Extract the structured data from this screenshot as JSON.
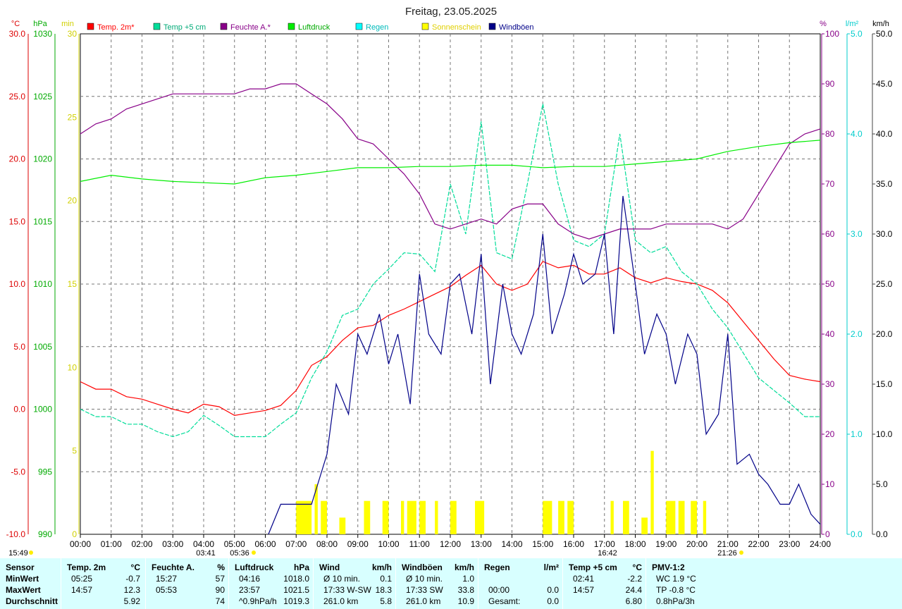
{
  "chart_data": {
    "type": "line",
    "title": "Freitag, 23.05.2025",
    "x_ticks": [
      "00:00",
      "01:00",
      "02:00",
      "03:00",
      "04:00",
      "05:00",
      "06:00",
      "07:00",
      "08:00",
      "09:00",
      "10:00",
      "11:00",
      "12:00",
      "13:00",
      "14:00",
      "15:00",
      "16:00",
      "17:00",
      "18:00",
      "19:00",
      "20:00",
      "21:00",
      "22:00",
      "23:00",
      "24:00"
    ],
    "xlim_hours": [
      0,
      24
    ],
    "grid": true,
    "axes": {
      "temp": {
        "unit": "°C",
        "range": [
          -10,
          30
        ],
        "ticks": [
          "30.0",
          "25.0",
          "20.0",
          "15.0",
          "10.0",
          "5.0",
          "0.0",
          "-5.0",
          "-10.0"
        ],
        "color": "#ff0000"
      },
      "pressure": {
        "unit": "hPa",
        "range": [
          990,
          1030
        ],
        "ticks": [
          "1030",
          "1025",
          "1020",
          "1015",
          "1010",
          "1005",
          "1000",
          "995",
          "990"
        ],
        "color": "#00bb00"
      },
      "sunshine": {
        "unit": "min",
        "range": [
          0,
          30
        ],
        "ticks": [
          "30",
          "25",
          "20",
          "15",
          "10",
          "5",
          "0"
        ],
        "color": "#dddd00"
      },
      "humidity": {
        "unit": "%",
        "range": [
          0,
          100
        ],
        "ticks": [
          "100",
          "90",
          "80",
          "70",
          "60",
          "50",
          "40",
          "30",
          "20",
          "10",
          "0"
        ],
        "color": "#880088"
      },
      "rain": {
        "unit": "l/m²",
        "range": [
          0,
          5
        ],
        "ticks": [
          "5.0",
          "4.0",
          "3.0",
          "2.0",
          "1.0",
          "0.0"
        ],
        "color": "#00dddd"
      },
      "wind": {
        "unit": "km/h",
        "range": [
          0,
          50
        ],
        "ticks": [
          "50.0",
          "45.0",
          "40.0",
          "35.0",
          "30.0",
          "25.0",
          "20.0",
          "15.0",
          "10.0",
          "5.0",
          "0.0"
        ],
        "color": "#000000"
      }
    },
    "legend": [
      {
        "name": "Temp. 2m*",
        "color": "#ff0000"
      },
      {
        "name": "Temp +5 cm",
        "color": "#00dd99"
      },
      {
        "name": "Feuchte A.*",
        "color": "#880088"
      },
      {
        "name": "Luftdruck",
        "color": "#00ee00"
      },
      {
        "name": "Regen",
        "color": "#00ffff"
      },
      {
        "name": "Sonnenschein",
        "color": "#ffff00"
      },
      {
        "name": "Windböen",
        "color": "#000088"
      }
    ],
    "series": [
      {
        "name": "Temp. 2m*",
        "axis": "temp",
        "color": "#ff0000",
        "hours": [
          0,
          0.5,
          1,
          1.5,
          2,
          2.5,
          3,
          3.5,
          4,
          4.5,
          5,
          5.5,
          6,
          6.5,
          7,
          7.5,
          8,
          8.5,
          9,
          9.5,
          10,
          10.5,
          11,
          11.5,
          12,
          12.5,
          13,
          13.5,
          14,
          14.5,
          15,
          15.5,
          16,
          16.5,
          17,
          17.5,
          18,
          18.5,
          19,
          19.5,
          20,
          20.5,
          21,
          21.5,
          22,
          22.5,
          23,
          23.5,
          24
        ],
        "values": [
          2.2,
          1.6,
          1.6,
          1.0,
          0.8,
          0.4,
          0.0,
          -0.3,
          0.4,
          0.2,
          -0.5,
          -0.3,
          -0.1,
          0.3,
          1.5,
          3.5,
          4.2,
          5.5,
          6.5,
          6.7,
          7.5,
          8.0,
          8.6,
          9.2,
          9.8,
          10.7,
          11.5,
          10.0,
          9.5,
          10.0,
          11.8,
          11.3,
          11.5,
          10.8,
          10.8,
          11.3,
          10.5,
          10.1,
          10.5,
          10.2,
          10.0,
          9.5,
          8.5,
          7.0,
          5.5,
          4.0,
          2.7,
          2.4,
          2.2
        ]
      },
      {
        "name": "Temp +5 cm",
        "axis": "temp",
        "color": "#00dd99",
        "hours": [
          0,
          0.5,
          1,
          1.5,
          2,
          2.5,
          3,
          3.5,
          4,
          4.5,
          5,
          5.5,
          6,
          6.5,
          7,
          7.5,
          8,
          8.5,
          9,
          9.5,
          10,
          10.5,
          11,
          11.5,
          12,
          12.5,
          13,
          13.5,
          14,
          14.5,
          15,
          15.5,
          16,
          16.5,
          17,
          17.5,
          18,
          18.5,
          19,
          19.5,
          20,
          20.5,
          21,
          21.5,
          22,
          22.5,
          23,
          23.5,
          24
        ],
        "values": [
          0,
          -0.6,
          -0.6,
          -1.2,
          -1.2,
          -1.8,
          -2.2,
          -1.8,
          -0.5,
          -1.3,
          -2.2,
          -2.2,
          -2.2,
          -1.2,
          -0.3,
          2.5,
          4.6,
          7.5,
          8.0,
          10.0,
          11.2,
          12.5,
          12.4,
          11.0,
          18.0,
          14.0,
          23.0,
          12.5,
          12.0,
          18.0,
          24.4,
          18.0,
          13.5,
          13.0,
          14.0,
          22.0,
          13.5,
          12.5,
          13.0,
          11.0,
          10.0,
          8.0,
          6.5,
          4.5,
          2.5,
          1.5,
          0.5,
          -0.6,
          -0.6
        ]
      },
      {
        "name": "Feuchte A.*",
        "axis": "humidity",
        "color": "#880088",
        "hours": [
          0,
          0.5,
          1,
          1.5,
          2,
          2.5,
          3,
          3.5,
          4,
          4.5,
          5,
          5.5,
          6,
          6.5,
          7,
          7.5,
          8,
          8.5,
          9,
          9.5,
          10,
          10.5,
          11,
          11.5,
          12,
          12.5,
          13,
          13.5,
          14,
          14.5,
          15,
          15.5,
          16,
          16.5,
          17,
          17.5,
          18,
          18.5,
          19,
          19.5,
          20,
          20.5,
          21,
          21.5,
          22,
          22.5,
          23,
          23.5,
          24
        ],
        "values": [
          80,
          82,
          83,
          85,
          86,
          87,
          88,
          88,
          88,
          88,
          88,
          89,
          89,
          90,
          90,
          88,
          86,
          83,
          79,
          78,
          75,
          72,
          68,
          62,
          61,
          62,
          63,
          62,
          65,
          66,
          66,
          62,
          60,
          59,
          60,
          61,
          61,
          61,
          62,
          62,
          62,
          62,
          61,
          63,
          68,
          73,
          78,
          80,
          81
        ]
      },
      {
        "name": "Luftdruck",
        "axis": "pressure",
        "color": "#00ee00",
        "hours": [
          0,
          1,
          2,
          3,
          4,
          5,
          6,
          7,
          8,
          9,
          10,
          11,
          12,
          13,
          14,
          15,
          16,
          17,
          18,
          19,
          20,
          21,
          22,
          23,
          24
        ],
        "values": [
          1018.2,
          1018.7,
          1018.4,
          1018.2,
          1018.1,
          1018.0,
          1018.5,
          1018.7,
          1019.0,
          1019.3,
          1019.3,
          1019.4,
          1019.4,
          1019.5,
          1019.5,
          1019.3,
          1019.4,
          1019.4,
          1019.6,
          1019.8,
          1020.0,
          1020.6,
          1021.0,
          1021.3,
          1021.5
        ]
      },
      {
        "name": "Windböen",
        "axis": "wind",
        "color": "#000088",
        "hours": [
          6.1,
          6.5,
          7.0,
          7.5,
          8.0,
          8.3,
          8.7,
          9.0,
          9.3,
          9.7,
          10.0,
          10.3,
          10.7,
          11.0,
          11.3,
          11.7,
          12.0,
          12.3,
          12.7,
          13.0,
          13.3,
          13.7,
          14.0,
          14.3,
          14.7,
          15.0,
          15.3,
          15.7,
          16.0,
          16.3,
          16.7,
          17.0,
          17.3,
          17.6,
          18.0,
          18.3,
          18.7,
          19.0,
          19.3,
          19.7,
          20.0,
          20.3,
          20.7,
          21.0,
          21.3,
          21.7,
          22.0,
          22.3,
          22.7,
          23.0,
          23.3,
          23.7,
          24.0
        ],
        "values": [
          0,
          3,
          3,
          3,
          8,
          15,
          12,
          20,
          18,
          22,
          17,
          20,
          13,
          26,
          20,
          18,
          25,
          26,
          20,
          28,
          15,
          25,
          20,
          18,
          22,
          30,
          20,
          24,
          28,
          25,
          26,
          30,
          20,
          33.8,
          25,
          18,
          22,
          20,
          15,
          20,
          18,
          10,
          12,
          20,
          7,
          8,
          6,
          5,
          3,
          3,
          5,
          2,
          1
        ]
      },
      {
        "name": "Sonnenschein",
        "axis": "sunshine",
        "color": "#ffff00",
        "intervals_hours": [
          [
            7.0,
            7.5
          ],
          [
            7.6,
            7.7
          ],
          [
            7.8,
            8.0
          ],
          [
            8.4,
            8.6
          ],
          [
            9.2,
            9.4
          ],
          [
            9.8,
            10.0
          ],
          [
            10.4,
            10.5
          ],
          [
            10.6,
            10.9
          ],
          [
            11.0,
            11.2
          ],
          [
            11.5,
            11.6
          ],
          [
            12.0,
            12.2
          ],
          [
            12.8,
            13.1
          ],
          [
            15.0,
            15.3
          ],
          [
            15.5,
            15.7
          ],
          [
            15.8,
            16.0
          ],
          [
            17.2,
            17.3
          ],
          [
            17.6,
            17.8
          ],
          [
            18.2,
            18.4
          ],
          [
            18.5,
            18.6
          ],
          [
            19.0,
            19.3
          ],
          [
            19.4,
            19.6
          ],
          [
            19.8,
            20.0
          ],
          [
            20.2,
            20.3
          ]
        ],
        "values_min": [
          2,
          3,
          2,
          1,
          2,
          2,
          2,
          2,
          2,
          2,
          2,
          2,
          2,
          2,
          2,
          2,
          2,
          1,
          5,
          2,
          2,
          2,
          2
        ]
      }
    ],
    "markers": {
      "sunrise": "05:36",
      "sunset": "21:26",
      "moonrise": "03:41",
      "moonset": "16:42",
      "left_time": "15:49"
    }
  },
  "summary": {
    "columns": [
      {
        "header": "Sensor",
        "rows": [
          "MinWert",
          "MaxWert",
          "Durchschnitt"
        ]
      },
      {
        "header": "Temp. 2m",
        "unit": "°C",
        "rows": [
          [
            "05:25",
            "-0.7"
          ],
          [
            "14:57",
            "12.3"
          ],
          [
            "",
            "5.92"
          ]
        ]
      },
      {
        "header": "Feuchte A.",
        "unit": "%",
        "rows": [
          [
            "15:27",
            "57"
          ],
          [
            "05:53",
            "90"
          ],
          [
            "",
            "74"
          ]
        ]
      },
      {
        "header": "Luftdruck",
        "unit": "hPa",
        "rows": [
          [
            "04:16",
            "1018.0"
          ],
          [
            "23:57",
            "1021.5"
          ],
          [
            "^0.9hPa/h",
            "1019.3"
          ]
        ]
      },
      {
        "header": "Wind",
        "unit": "km/h",
        "rows": [
          [
            "Ø 10 min.",
            "0.1"
          ],
          [
            "17:33   W-SW",
            "18.3"
          ],
          [
            "261.0 km",
            "5.8"
          ]
        ]
      },
      {
        "header": "Windböen",
        "unit": "km/h",
        "rows": [
          [
            "Ø 10 min.",
            "1.0"
          ],
          [
            "17:33      SW",
            "33.8"
          ],
          [
            "261.0 km",
            "10.9"
          ]
        ]
      },
      {
        "header": "Regen",
        "unit": "l/m²",
        "rows": [
          [
            "",
            ""
          ],
          [
            "00:00",
            "0.0"
          ],
          [
            "Gesamt:",
            "0.0"
          ]
        ]
      },
      {
        "header": "Temp +5 cm",
        "unit": "°C",
        "rows": [
          [
            "02:41",
            "-2.2"
          ],
          [
            "14:57",
            "24.4"
          ],
          [
            "",
            "6.80"
          ]
        ]
      },
      {
        "header": "PMV-1:2",
        "unit": "",
        "rows": [
          [
            "WC 1.9 °C",
            ""
          ],
          [
            "TP -0.8 °C",
            ""
          ],
          [
            "0.8hPa/3h",
            ""
          ]
        ]
      }
    ],
    "first_row_extra": "0.0"
  }
}
